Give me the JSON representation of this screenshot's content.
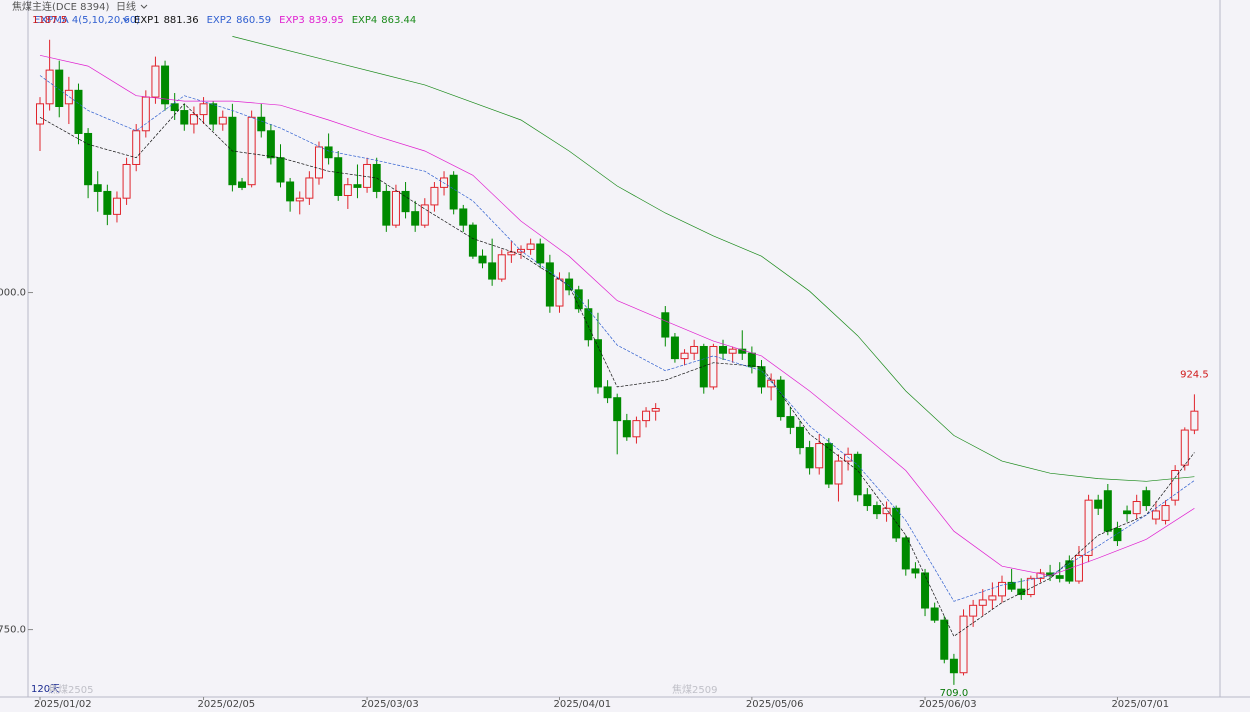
{
  "chart_data": {
    "type": "candlestick",
    "title": "焦煤主连(DCE 8394)",
    "period": "日线",
    "indicator": "EXPMA 4(5,10,20,60)",
    "contract_labels": [
      "120天",
      "焦煤2505",
      "焦煤2509"
    ],
    "annotations": [
      "1187.5",
      "924.5",
      "709.0"
    ],
    "up_color": "#e0242c",
    "down_color": "#008a00",
    "ylim": [
      700,
      1217
    ],
    "yticks": [
      {
        "value": 750,
        "label": "750.0"
      },
      {
        "value": 1000,
        "label": "1000.0"
      }
    ],
    "categories": [
      "2025/01/02",
      null,
      null,
      null,
      null,
      null,
      null,
      null,
      null,
      null,
      null,
      null,
      null,
      null,
      null,
      null,
      null,
      "2025/02/05",
      null,
      null,
      null,
      null,
      null,
      null,
      null,
      null,
      null,
      null,
      null,
      null,
      null,
      null,
      null,
      null,
      "2025/03/03",
      null,
      null,
      null,
      null,
      null,
      null,
      null,
      null,
      null,
      null,
      null,
      null,
      null,
      null,
      null,
      null,
      null,
      null,
      null,
      "2025/04/01",
      null,
      null,
      null,
      null,
      null,
      null,
      null,
      null,
      null,
      null,
      null,
      null,
      null,
      null,
      null,
      null,
      null,
      null,
      null,
      "2025/05/06",
      null,
      null,
      null,
      null,
      null,
      null,
      null,
      null,
      null,
      null,
      null,
      null,
      null,
      null,
      null,
      null,
      null,
      "2025/06/03",
      null,
      null,
      null,
      null,
      null,
      null,
      null,
      null,
      null,
      null,
      null,
      null,
      null,
      null,
      null,
      null,
      null,
      null,
      null,
      "2025/07/01",
      null,
      null,
      null,
      null,
      null,
      null,
      null,
      null
    ],
    "ohlc": [
      [
        1125,
        1145,
        1105,
        1140
      ],
      [
        1140,
        1187.5,
        1135,
        1165
      ],
      [
        1165,
        1172,
        1130,
        1138
      ],
      [
        1140,
        1160,
        1125,
        1150
      ],
      [
        1150,
        1155,
        1110,
        1118
      ],
      [
        1118,
        1122,
        1070,
        1080
      ],
      [
        1080,
        1090,
        1060,
        1075
      ],
      [
        1075,
        1080,
        1050,
        1058
      ],
      [
        1058,
        1075,
        1052,
        1070
      ],
      [
        1070,
        1100,
        1065,
        1095
      ],
      [
        1095,
        1125,
        1090,
        1120
      ],
      [
        1120,
        1150,
        1115,
        1145
      ],
      [
        1145,
        1175,
        1140,
        1168
      ],
      [
        1168,
        1172,
        1135,
        1140
      ],
      [
        1140,
        1148,
        1128,
        1135
      ],
      [
        1135,
        1140,
        1120,
        1125
      ],
      [
        1125,
        1138,
        1118,
        1132
      ],
      [
        1132,
        1145,
        1125,
        1140
      ],
      [
        1140,
        1142,
        1120,
        1125
      ],
      [
        1125,
        1135,
        1120,
        1130
      ],
      [
        1130,
        1140,
        1075,
        1080
      ],
      [
        1082,
        1085,
        1076,
        1078
      ],
      [
        1080,
        1135,
        1078,
        1130
      ],
      [
        1130,
        1140,
        1115,
        1120
      ],
      [
        1120,
        1125,
        1095,
        1100
      ],
      [
        1100,
        1110,
        1078,
        1082
      ],
      [
        1082,
        1085,
        1060,
        1068
      ],
      [
        1068,
        1075,
        1058,
        1070
      ],
      [
        1070,
        1090,
        1065,
        1085
      ],
      [
        1085,
        1112,
        1080,
        1108
      ],
      [
        1108,
        1118,
        1095,
        1100
      ],
      [
        1100,
        1105,
        1068,
        1072
      ],
      [
        1072,
        1085,
        1062,
        1080
      ],
      [
        1080,
        1095,
        1070,
        1078
      ],
      [
        1078,
        1100,
        1074,
        1095
      ],
      [
        1095,
        1100,
        1070,
        1075
      ],
      [
        1075,
        1080,
        1045,
        1050
      ],
      [
        1050,
        1080,
        1048,
        1075
      ],
      [
        1075,
        1082,
        1055,
        1060
      ],
      [
        1060,
        1068,
        1045,
        1050
      ],
      [
        1050,
        1070,
        1048,
        1065
      ],
      [
        1065,
        1082,
        1060,
        1078
      ],
      [
        1078,
        1090,
        1072,
        1085
      ],
      [
        1087,
        1090,
        1058,
        1062
      ],
      [
        1062,
        1065,
        1045,
        1050
      ],
      [
        1050,
        1052,
        1025,
        1027
      ],
      [
        1027,
        1032,
        1018,
        1022
      ],
      [
        1022,
        1040,
        1005,
        1010
      ],
      [
        1010,
        1032,
        1008,
        1028
      ],
      [
        1028,
        1038,
        1022,
        1030
      ],
      [
        1030,
        1035,
        1025,
        1032
      ],
      [
        1032,
        1040,
        1028,
        1036
      ],
      [
        1036,
        1040,
        1018,
        1022
      ],
      [
        1022,
        1028,
        985,
        990
      ],
      [
        990,
        1015,
        985,
        1010
      ],
      [
        1010,
        1015,
        998,
        1002
      ],
      [
        1002,
        1005,
        985,
        988
      ],
      [
        988,
        995,
        960,
        965
      ],
      [
        965,
        985,
        925,
        930
      ],
      [
        930,
        935,
        918,
        922
      ],
      [
        922,
        925,
        880,
        905
      ],
      [
        905,
        910,
        890,
        893
      ],
      [
        893,
        908,
        888,
        905
      ],
      [
        905,
        915,
        900,
        912
      ],
      [
        912,
        918,
        905,
        914
      ],
      [
        985,
        990,
        960,
        967
      ],
      [
        967,
        970,
        948,
        951
      ],
      [
        951,
        958,
        946,
        955
      ],
      [
        955,
        965,
        950,
        960
      ],
      [
        960,
        962,
        925,
        930
      ],
      [
        930,
        962,
        928,
        960
      ],
      [
        960,
        965,
        950,
        955
      ],
      [
        955,
        960,
        948,
        958
      ],
      [
        958,
        972,
        950,
        955
      ],
      [
        955,
        960,
        940,
        945
      ],
      [
        945,
        950,
        925,
        930
      ],
      [
        930,
        940,
        920,
        935
      ],
      [
        935,
        938,
        905,
        908
      ],
      [
        908,
        915,
        895,
        900
      ],
      [
        900,
        905,
        880,
        885
      ],
      [
        885,
        890,
        865,
        870
      ],
      [
        870,
        895,
        865,
        888
      ],
      [
        888,
        892,
        855,
        858
      ],
      [
        858,
        880,
        845,
        875
      ],
      [
        875,
        885,
        868,
        880
      ],
      [
        880,
        882,
        845,
        850
      ],
      [
        850,
        855,
        838,
        842
      ],
      [
        842,
        845,
        832,
        836
      ],
      [
        836,
        845,
        830,
        840
      ],
      [
        840,
        842,
        815,
        818
      ],
      [
        818,
        820,
        790,
        795
      ],
      [
        795,
        800,
        788,
        792
      ],
      [
        792,
        795,
        760,
        766
      ],
      [
        766,
        770,
        755,
        757
      ],
      [
        757,
        760,
        725,
        728
      ],
      [
        728,
        732,
        709,
        718
      ],
      [
        718,
        765,
        716,
        760
      ],
      [
        760,
        772,
        752,
        768
      ],
      [
        768,
        780,
        760,
        772
      ],
      [
        772,
        785,
        765,
        775
      ],
      [
        775,
        790,
        770,
        785
      ],
      [
        785,
        795,
        778,
        780
      ],
      [
        780,
        788,
        772,
        776
      ],
      [
        776,
        790,
        774,
        788
      ],
      [
        788,
        795,
        785,
        792
      ],
      [
        792,
        798,
        786,
        790
      ],
      [
        790,
        800,
        785,
        788
      ],
      [
        801,
        805,
        784,
        786
      ],
      [
        786,
        812,
        784,
        805
      ],
      [
        805,
        850,
        800,
        846
      ],
      [
        846,
        850,
        835,
        840
      ],
      [
        853,
        858,
        820,
        823
      ],
      [
        825,
        830,
        812,
        816
      ],
      [
        838,
        842,
        830,
        836
      ],
      [
        836,
        850,
        832,
        845
      ],
      [
        853,
        856,
        838,
        842
      ],
      [
        832,
        845,
        828,
        838
      ],
      [
        831,
        846,
        828,
        842
      ],
      [
        846,
        872,
        842,
        868
      ],
      [
        872,
        900,
        868,
        898
      ],
      [
        898,
        924.5,
        895,
        912
      ]
    ],
    "series": [
      {
        "name": "EXP1",
        "color": "#111111",
        "x": [
          0,
          5,
          10,
          15,
          20,
          25,
          30,
          35,
          40,
          45,
          50,
          55,
          60,
          65,
          70,
          75,
          80,
          85,
          90,
          95,
          100,
          105,
          110,
          115,
          120
        ],
        "values": [
          1130,
          1110,
          1100,
          1140,
          1105,
          1100,
          1090,
          1085,
          1062,
          1040,
          1028,
          1005,
          930,
          935,
          948,
          945,
          895,
          868,
          820,
          745,
          770,
          788,
          820,
          835,
          881.36
        ]
      },
      {
        "name": "EXP2",
        "color": "#2f5fd0",
        "x": [
          0,
          5,
          10,
          15,
          20,
          25,
          30,
          35,
          40,
          45,
          50,
          55,
          60,
          65,
          70,
          75,
          80,
          85,
          90,
          95,
          100,
          105,
          110,
          115,
          120
        ],
        "values": [
          1161,
          1135,
          1120,
          1146,
          1135,
          1122,
          1105,
          1098,
          1090,
          1068,
          1031,
          1005,
          961,
          942,
          953,
          942,
          901,
          872,
          831,
          771,
          783,
          790,
          812,
          835,
          860.59
        ]
      },
      {
        "name": "EXP3",
        "color": "#e020d0",
        "x": [
          0,
          5,
          10,
          15,
          20,
          25,
          30,
          35,
          40,
          45,
          50,
          55,
          60,
          65,
          70,
          75,
          80,
          85,
          90,
          95,
          100,
          105,
          110,
          115,
          120
        ],
        "values": [
          1176,
          1168,
          1146,
          1142,
          1142,
          1139,
          1128,
          1116,
          1105,
          1087,
          1053,
          1027,
          994,
          979,
          964,
          953,
          927,
          898,
          868,
          823,
          797,
          790,
          803,
          817,
          839.95
        ]
      },
      {
        "name": "EXP4",
        "color": "#1a8a1a",
        "x": [
          20,
          30,
          40,
          50,
          55,
          60,
          65,
          70,
          75,
          80,
          85,
          90,
          95,
          100,
          105,
          110,
          115,
          120
        ],
        "values": [
          1190,
          1172,
          1154,
          1128,
          1105,
          1079,
          1059,
          1042,
          1027,
          1001,
          968,
          927,
          894,
          875,
          866,
          862,
          860,
          863.44
        ]
      }
    ]
  }
}
